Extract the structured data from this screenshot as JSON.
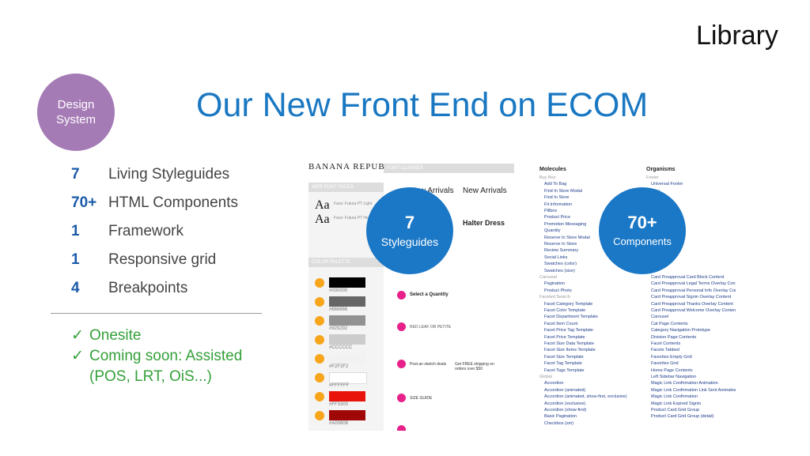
{
  "header": {
    "section": "Library",
    "badge_line1": "Design",
    "badge_line2": "System",
    "title": "Our New Front End on ECOM"
  },
  "stats": [
    {
      "num": "7",
      "label": "Living Styleguides"
    },
    {
      "num": "70+",
      "label": "HTML Components"
    },
    {
      "num": "1",
      "label": "Framework"
    },
    {
      "num": "1",
      "label": "Responsive grid"
    },
    {
      "num": "4",
      "label": "Breakpoints"
    }
  ],
  "checklist": [
    {
      "mark": "✓",
      "text": "Onesite"
    },
    {
      "mark": "✓",
      "text": "Coming soon: Assisted"
    },
    {
      "mark": "",
      "text": "(POS, LRT, OiS...)"
    }
  ],
  "styleguide_shot": {
    "brand": "BANANA REPUBLIC",
    "font_classes": "FONT CLASSES",
    "web_font_faces": "WEB FONT FACES",
    "color_palette": "COLOR PALETTE",
    "aa": "Aa",
    "font1": "Face: Futura PT Light",
    "font2": "Face: Futura PT Heavy",
    "new_arrivals": "New Arrivals",
    "halter_dress": "Halter Dress",
    "select_quantity": "Select a Quantity",
    "red_leaf": "RED LEAF OR PETITE",
    "post_sketch": "Post an sketch deals",
    "size_guide": "SIZE GUIDE",
    "free_shipping": "Get FREE shipping on orders over $50",
    "swatches": [
      {
        "hex": "#000000",
        "color": "#000000"
      },
      {
        "hex": "#666666",
        "color": "#666666"
      },
      {
        "hex": "#929292",
        "color": "#929292"
      },
      {
        "hex": "#CCCCCC",
        "color": "#cccccc"
      },
      {
        "hex": "#F2F2F2",
        "color": "#f2f2f2"
      },
      {
        "hex": "#FFFFFF",
        "color": "#ffffff"
      },
      {
        "hex": "#FF3300",
        "color": "#e8140c"
      },
      {
        "hex": "#A00808",
        "color": "#a00808"
      }
    ]
  },
  "components_shot": {
    "molecules_head": "Molecules",
    "organisms_head": "Organisms",
    "molecules": [
      "Buy Box",
      "Add To Bag",
      "Find In Store Modal",
      "Find In Store",
      "Fit Information",
      "Pillbox",
      "Product Price",
      "Promotion Messaging",
      "Quantity",
      "Reserve In Store Modal",
      "Reserve In Store",
      "Review Summary",
      "Social Links",
      "Swatches (color)",
      "Swatches (size)",
      "Carousel",
      "Pagination",
      "Product Photo",
      "Faceted Search",
      "Facet Category Template",
      "Facet Color Template",
      "Facet Department Template",
      "Facet Item Count",
      "Facet Price Tag Template",
      "Facet Price Template",
      "Facet Size Data Template",
      "Facet Size Items Template",
      "Facet Size Template",
      "Facet Tag Template",
      "Facet Tags Template",
      "Global",
      "Accordion",
      "Accordion (animated)",
      "Accordion (animated, show-first, exclusive)",
      "Accordion (exclusive)",
      "Accordion (show-first)",
      "Basic Pagination",
      "Checkbox (sm)"
    ],
    "organisms": [
      "Footer",
      "Universal Footer",
      "Header",
      "",
      "",
      "",
      "",
      "",
      "",
      "",
      "",
      "",
      "",
      "",
      "",
      "Card Preapproval Card Block Content",
      "Card Preapproval Legal Terms Overlay Content",
      "Card Preapproval Personal Info Overlay Content",
      "Card Preapproval Signin Overlay Content",
      "Card Preapproval Thanks Overlay Content",
      "Card Preapproval Welcome Overlay Content",
      "Carousel",
      "Cat Page Contents",
      "Category Navigation Prototype",
      "Division Page Contents",
      "Facet Contents",
      "Facets Tabbed",
      "Favorites Empty Grid",
      "Favorites Grid",
      "Home Page Contents",
      "Left Sidebar Navigation",
      "Magic Link Confirmation Animation",
      "Magic Link Confirmation Link Sent Animation",
      "Magic Link Confirmation",
      "Magic Link Expired Signin",
      "Product Card Grid Group",
      "Product Card Grid Group (detail)"
    ]
  },
  "circles": [
    {
      "num": "7",
      "label": "Styleguides"
    },
    {
      "num": "70+",
      "label": "Components"
    }
  ],
  "colors": {
    "accent": "#1a78c2",
    "badge": "#a57bb5",
    "check": "#35a03a",
    "circle": "#1b78c6"
  }
}
